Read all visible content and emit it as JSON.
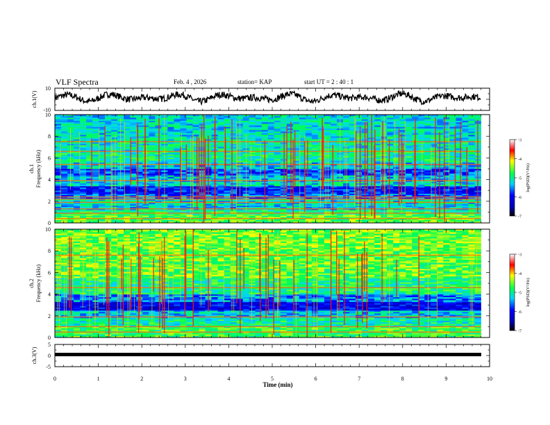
{
  "header": {
    "title": "VLF Spectra",
    "date": "Feb. 4 , 2026",
    "station": "station= KAP",
    "start": "start UT =  2 : 40 : 1"
  },
  "chart_data": [
    {
      "type": "line",
      "panel": "ch1-waveform",
      "ylabel": "ch.1(V)",
      "ylim": [
        -10,
        10
      ],
      "yticks": [
        "10",
        "-10"
      ],
      "xlim": [
        0,
        10
      ],
      "trace_end_min": 9.8,
      "description_series": "noisy waveform oscillating roughly between -5 and 8 V"
    },
    {
      "type": "heatmap",
      "panel": "ch1-spectrogram",
      "ylabel": "ch.1 Frequency (kHz)",
      "ylim": [
        0,
        10
      ],
      "yticks": [
        "0",
        "2",
        "4",
        "6",
        "8",
        "10"
      ],
      "xlim": [
        0,
        9.8
      ],
      "colorbar": {
        "ticks": [
          "-3",
          "-4",
          "-5",
          "-6",
          "-7"
        ],
        "label": "log(PSD)(V²/Hz)",
        "range": [
          -7,
          -3
        ]
      },
      "bands": [
        {
          "from": 0.0,
          "to": 0.8,
          "level": -4.6
        },
        {
          "from": 0.8,
          "to": 1.2,
          "level": -4.9
        },
        {
          "from": 1.2,
          "to": 1.6,
          "level": -5.3
        },
        {
          "from": 1.6,
          "to": 2.2,
          "level": -5.2
        },
        {
          "from": 2.2,
          "to": 2.7,
          "level": -5.6
        },
        {
          "from": 2.7,
          "to": 3.4,
          "level": -5.9
        },
        {
          "from": 3.4,
          "to": 3.8,
          "level": -5.2
        },
        {
          "from": 3.8,
          "to": 4.4,
          "level": -5.3
        },
        {
          "from": 4.4,
          "to": 5.0,
          "level": -5.7
        },
        {
          "from": 5.0,
          "to": 5.6,
          "level": -5.3
        },
        {
          "from": 5.6,
          "to": 6.6,
          "level": -5.0
        },
        {
          "from": 6.6,
          "to": 8.0,
          "level": -5.1
        },
        {
          "from": 8.0,
          "to": 10.0,
          "level": -5.2
        }
      ],
      "lines_khz": [
        0.4,
        0.9,
        1.3,
        1.9,
        2.2,
        2.4,
        3.9,
        5.4,
        6.6,
        7.5
      ]
    },
    {
      "type": "heatmap",
      "panel": "ch2-spectrogram",
      "ylabel": "ch.2 Frequency (kHz)",
      "ylim": [
        0,
        10
      ],
      "yticks": [
        "0",
        "2",
        "4",
        "6",
        "8",
        "10"
      ],
      "xlim": [
        0,
        9.8
      ],
      "colorbar": {
        "ticks": [
          "-3",
          "-4",
          "-5",
          "-6",
          "-7"
        ],
        "label": "log(PSD)(V²/Hz)",
        "range": [
          -7,
          -3
        ]
      },
      "bands": [
        {
          "from": 0.0,
          "to": 1.0,
          "level": -4.7
        },
        {
          "from": 1.0,
          "to": 1.8,
          "level": -5.0
        },
        {
          "from": 1.8,
          "to": 2.5,
          "level": -5.3
        },
        {
          "from": 2.5,
          "to": 3.3,
          "level": -6.1
        },
        {
          "from": 3.3,
          "to": 4.0,
          "level": -5.5
        },
        {
          "from": 4.0,
          "to": 5.5,
          "level": -4.9
        },
        {
          "from": 5.5,
          "to": 8.0,
          "level": -4.6
        },
        {
          "from": 8.0,
          "to": 10.0,
          "level": -4.5
        }
      ],
      "lines_khz": [
        0.5,
        1.0,
        1.9,
        4.6,
        7.6
      ]
    },
    {
      "type": "line",
      "panel": "ch3-waveform",
      "ylabel": "ch.3(V)",
      "ylim": [
        -5,
        5
      ],
      "yticks": [
        "5",
        "0",
        "-5"
      ],
      "xlim": [
        0,
        10
      ],
      "trace_value": -1,
      "xlabel": "Time (min)",
      "xticks": [
        "0",
        "1",
        "2",
        "3",
        "4",
        "5",
        "6",
        "7",
        "8",
        "9",
        "10"
      ]
    }
  ]
}
